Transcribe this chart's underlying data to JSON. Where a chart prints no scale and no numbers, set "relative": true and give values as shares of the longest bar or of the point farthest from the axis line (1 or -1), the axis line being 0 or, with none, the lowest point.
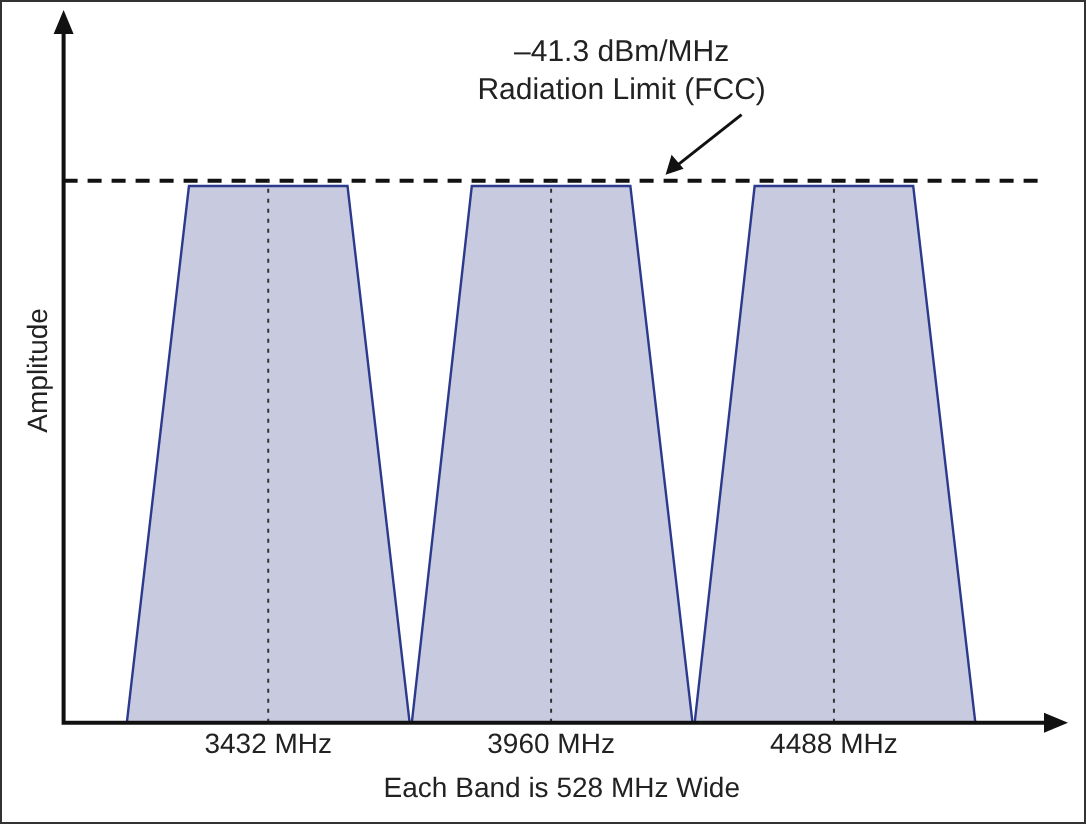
{
  "chart_data": {
    "type": "area",
    "relative": true,
    "xlabel": "Each Band is 528 MHz Wide",
    "ylabel": "Amplitude",
    "xlim": [
      3050,
      4910
    ],
    "xticks": [
      {
        "value": 3432,
        "label": "3432 MHz"
      },
      {
        "value": 3960,
        "label": "3960 MHz"
      },
      {
        "value": 4488,
        "label": "4488 MHz"
      }
    ],
    "series": [
      {
        "color": "#c8cbe0",
        "x": [
          3168,
          3284,
          3580,
          3696
        ],
        "values": [
          0,
          1,
          1,
          0
        ]
      },
      {
        "color": "#c8cbe0",
        "x": [
          3700,
          3812,
          4108,
          4224
        ],
        "values": [
          0,
          1,
          1,
          0
        ]
      },
      {
        "color": "#c8cbe0",
        "x": [
          4228,
          4340,
          4636,
          4752
        ],
        "values": [
          0,
          1,
          1,
          0
        ]
      }
    ],
    "ref_lines": [
      {
        "axis": "y",
        "value": 1.01,
        "label": "–41.3 dBm/MHz Radiation Limit (FCC)",
        "line_style": "dashed",
        "color": "#111111"
      },
      {
        "axis": "x",
        "value": 3432,
        "line_style": "dotted",
        "color": "#333333"
      },
      {
        "axis": "x",
        "value": 3960,
        "line_style": "dotted",
        "color": "#333333"
      },
      {
        "axis": "x",
        "value": 4488,
        "line_style": "dotted",
        "color": "#333333"
      }
    ],
    "grid": false,
    "legend": false
  }
}
